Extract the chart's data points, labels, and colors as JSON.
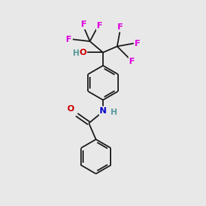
{
  "bg_color": "#e8e8e8",
  "bond_color": "#1a1a1a",
  "F_color": "#dd00dd",
  "O_color": "#cc0000",
  "N_color": "#0000cc",
  "H_color": "#559999",
  "line_width": 1.4,
  "font_size_atom": 9,
  "fig_width": 3.0,
  "fig_height": 3.0,
  "dpi": 100,
  "xlim": [
    0,
    10
  ],
  "ylim": [
    0,
    10
  ]
}
